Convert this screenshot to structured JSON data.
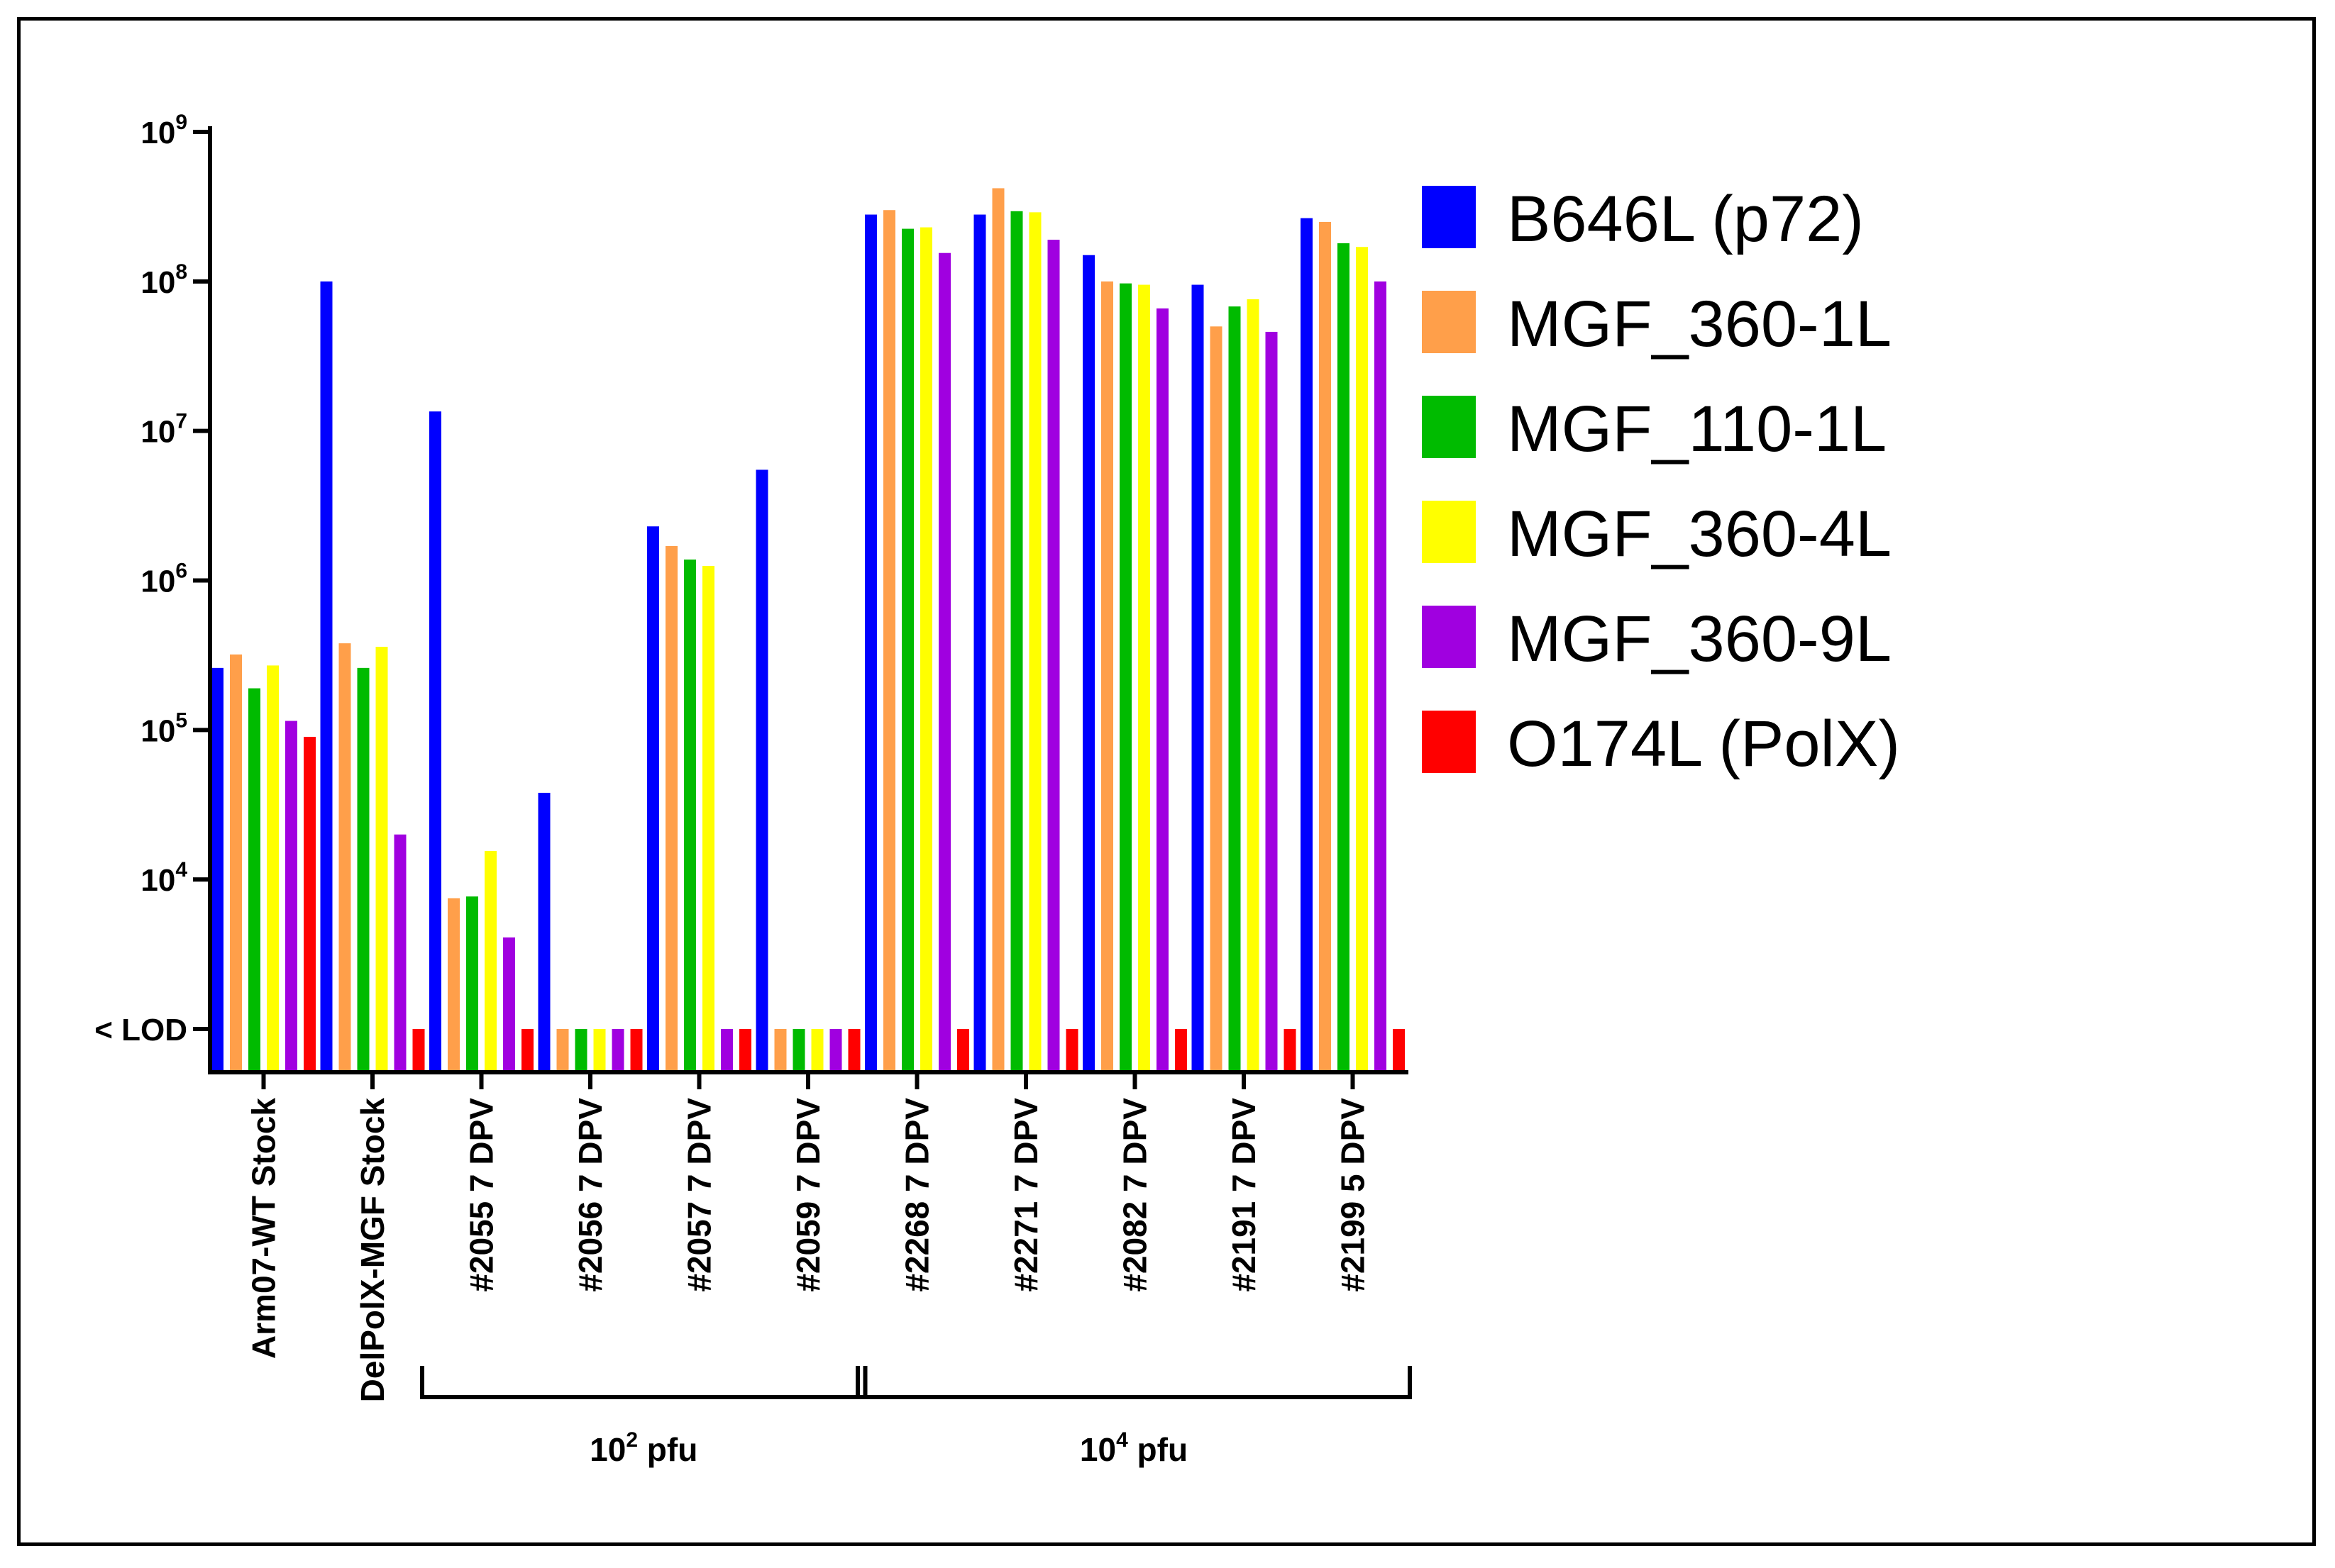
{
  "chart_data": {
    "type": "bar",
    "scale": "log",
    "ylim": [
      1000,
      1000000000
    ],
    "lod_label": "< LOD",
    "lod_value": 1000,
    "yticks": [
      {
        "value": 1000,
        "base": "< LOD",
        "exp": ""
      },
      {
        "value": 10000,
        "base": "10",
        "exp": "4"
      },
      {
        "value": 100000,
        "base": "10",
        "exp": "5"
      },
      {
        "value": 1000000,
        "base": "10",
        "exp": "6"
      },
      {
        "value": 10000000,
        "base": "10",
        "exp": "7"
      },
      {
        "value": 100000000,
        "base": "10",
        "exp": "8"
      },
      {
        "value": 1000000000,
        "base": "10",
        "exp": "9"
      }
    ],
    "categories": [
      "Arm07-WT Stock",
      "DelPolX-MGF Stock",
      "#2055 7 DPV",
      "#2056 7 DPV",
      "#2057 7 DPV",
      "#2059 7 DPV",
      "#2268 7 DPV",
      "#2271 7 DPV",
      "#2082 7 DPV",
      "#2191 7 DPV",
      "#2199 5 DPV"
    ],
    "series": [
      {
        "name": "B646L (p72)",
        "color": "#0000ff",
        "values": [
          260000,
          100000000,
          13500000,
          38000,
          2300000,
          5500000,
          280000000,
          280000000,
          150000000,
          95000000,
          265000000
        ]
      },
      {
        "name": "MGF_360-1L",
        "color": "#ff9f4a",
        "values": [
          320000,
          380000,
          7500,
          1000,
          1700000,
          1000,
          300000000,
          420000000,
          100000000,
          50000000,
          250000000
        ]
      },
      {
        "name": "MGF_110-1L",
        "color": "#00bb00",
        "values": [
          190000,
          260000,
          7700,
          1000,
          1380000,
          1000,
          225000000,
          295000000,
          97000000,
          68000000,
          180000000
        ]
      },
      {
        "name": "MGF_360-4L",
        "color": "#ffff00",
        "values": [
          270000,
          360000,
          15500,
          1000,
          1250000,
          1000,
          230000000,
          290000000,
          95000000,
          76000000,
          170000000
        ]
      },
      {
        "name": "MGF_360-9L",
        "color": "#a000e0",
        "values": [
          115000,
          20000,
          4100,
          1000,
          1000,
          1000,
          155000000,
          190000000,
          66000000,
          46000000,
          100000000
        ]
      },
      {
        "name": "O174L (PolX)",
        "color": "#ff0000",
        "values": [
          90000,
          1000,
          1000,
          1000,
          1000,
          1000,
          1000,
          1000,
          1000,
          1000,
          1000
        ]
      }
    ],
    "groups": [
      {
        "base": "10",
        "exp": "2",
        "unit": " pfu",
        "from": 2,
        "to": 5
      },
      {
        "base": "10",
        "exp": "4",
        "unit": " pfu",
        "from": 6,
        "to": 10
      }
    ]
  }
}
